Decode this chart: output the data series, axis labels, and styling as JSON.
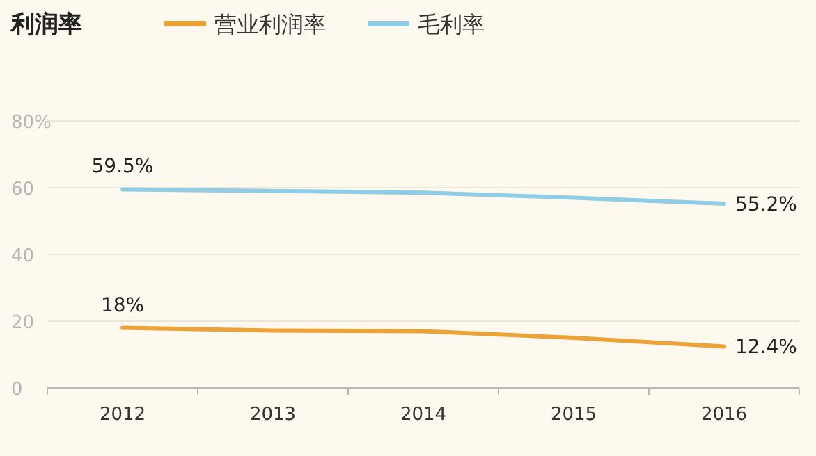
{
  "chart_data": {
    "type": "line",
    "title": "利润率",
    "categories": [
      "2012",
      "2013",
      "2014",
      "2015",
      "2016"
    ],
    "series": [
      {
        "name": "营业利润率",
        "color": "#eba236",
        "values": [
          18,
          17.2,
          17,
          15,
          12.4
        ],
        "value_labels": [
          "18%",
          null,
          null,
          null,
          "12.4%"
        ]
      },
      {
        "name": "毛利率",
        "color": "#8fcde6",
        "values": [
          59.5,
          59,
          58.5,
          57,
          55.2
        ],
        "value_labels": [
          "59.5%",
          null,
          null,
          null,
          "55.2%"
        ]
      }
    ],
    "ylim": [
      0,
      80
    ],
    "yticks": [
      0,
      20,
      40,
      60,
      {
        "value": 80,
        "label": "80%"
      }
    ],
    "grid": "y",
    "legend": "top"
  }
}
